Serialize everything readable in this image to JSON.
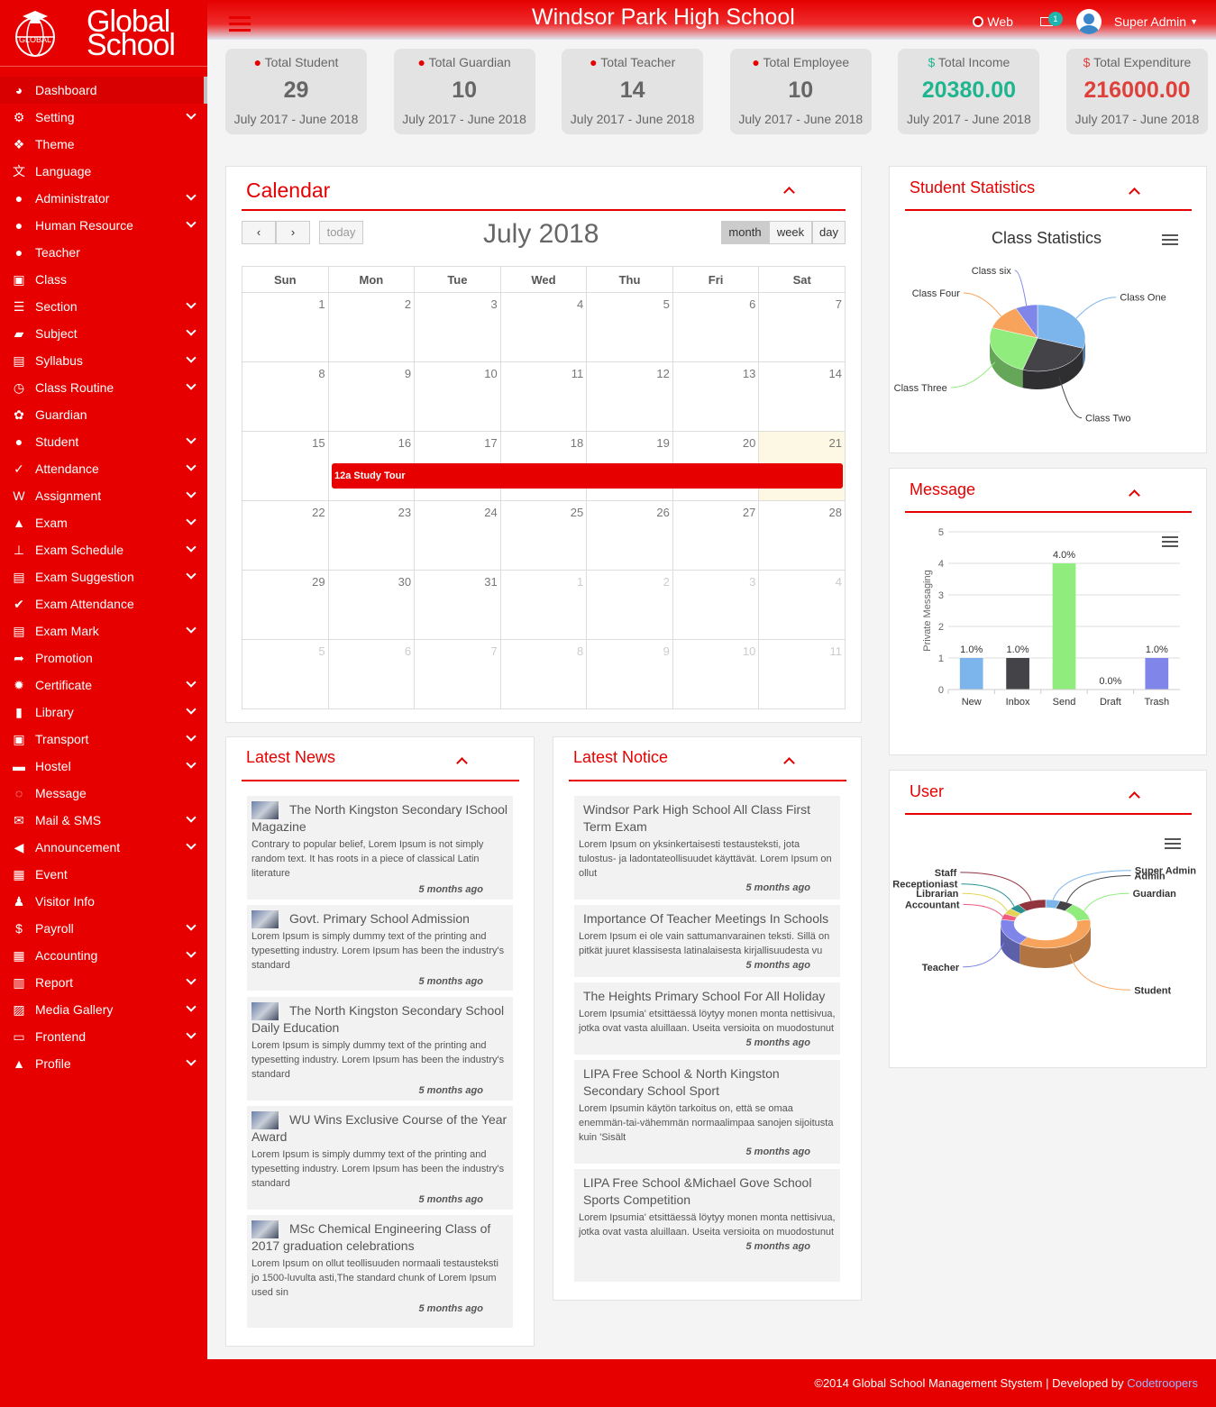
{
  "brand": {
    "line1": "Global",
    "line2": "School",
    "logo_text": "GLOBAL"
  },
  "header": {
    "title": "Windsor Park High School",
    "web_label": "Web",
    "mail_count": "1",
    "user_name": "Super Admin"
  },
  "sidebar": {
    "items": [
      {
        "label": "Dashboard",
        "icon": "dashboard-icon",
        "glyph": "◕",
        "chevron": false
      },
      {
        "label": "Setting",
        "icon": "gears-icon",
        "glyph": "⚙",
        "chevron": true
      },
      {
        "label": "Theme",
        "icon": "cubes-icon",
        "glyph": "❖",
        "chevron": false
      },
      {
        "label": "Language",
        "icon": "language-icon",
        "glyph": "文",
        "chevron": false
      },
      {
        "label": "Administrator",
        "icon": "user-icon",
        "glyph": "●",
        "chevron": true
      },
      {
        "label": "Human Resource",
        "icon": "users-icon",
        "glyph": "●",
        "chevron": true
      },
      {
        "label": "Teacher",
        "icon": "users-icon",
        "glyph": "●",
        "chevron": false
      },
      {
        "label": "Class",
        "icon": "class-icon",
        "glyph": "▣",
        "chevron": false
      },
      {
        "label": "Section",
        "icon": "bars-icon",
        "glyph": "☰",
        "chevron": true
      },
      {
        "label": "Subject",
        "icon": "folder-icon",
        "glyph": "▰",
        "chevron": true
      },
      {
        "label": "Syllabus",
        "icon": "files-icon",
        "glyph": "▤",
        "chevron": true
      },
      {
        "label": "Class Routine",
        "icon": "clock-icon",
        "glyph": "◷",
        "chevron": true
      },
      {
        "label": "Guardian",
        "icon": "paw-icon",
        "glyph": "✿",
        "chevron": false
      },
      {
        "label": "Student",
        "icon": "users-icon",
        "glyph": "●",
        "chevron": true
      },
      {
        "label": "Attendance",
        "icon": "check-circle-icon",
        "glyph": "✓",
        "chevron": true
      },
      {
        "label": "Assignment",
        "icon": "word-file-icon",
        "glyph": "W",
        "chevron": true
      },
      {
        "label": "Exam",
        "icon": "graduation-cap-icon",
        "glyph": "▲",
        "chevron": true
      },
      {
        "label": "Exam Schedule",
        "icon": "thumbtack-icon",
        "glyph": "⊥",
        "chevron": true
      },
      {
        "label": "Exam Suggestion",
        "icon": "file-text-icon",
        "glyph": "▤",
        "chevron": true
      },
      {
        "label": "Exam Attendance",
        "icon": "check-icon",
        "glyph": "✔",
        "chevron": false
      },
      {
        "label": "Exam Mark",
        "icon": "file-text-icon",
        "glyph": "▤",
        "chevron": true
      },
      {
        "label": "Promotion",
        "icon": "share-icon",
        "glyph": "➦",
        "chevron": false
      },
      {
        "label": "Certificate",
        "icon": "certificate-icon",
        "glyph": "✹",
        "chevron": true
      },
      {
        "label": "Library",
        "icon": "book-icon",
        "glyph": "▮",
        "chevron": true
      },
      {
        "label": "Transport",
        "icon": "bus-icon",
        "glyph": "▣",
        "chevron": true
      },
      {
        "label": "Hostel",
        "icon": "bed-icon",
        "glyph": "▬",
        "chevron": true
      },
      {
        "label": "Message",
        "icon": "comments-icon",
        "glyph": "◌",
        "chevron": false
      },
      {
        "label": "Mail & SMS",
        "icon": "envelope-icon",
        "glyph": "✉",
        "chevron": true
      },
      {
        "label": "Announcement",
        "icon": "bullhorn-icon",
        "glyph": "◀",
        "chevron": true
      },
      {
        "label": "Event",
        "icon": "calendar-check-icon",
        "glyph": "▦",
        "chevron": false
      },
      {
        "label": "Visitor Info",
        "icon": "male-icon",
        "glyph": "♟",
        "chevron": false
      },
      {
        "label": "Payroll",
        "icon": "dollar-icon",
        "glyph": "$",
        "chevron": true
      },
      {
        "label": "Accounting",
        "icon": "calculator-icon",
        "glyph": "▦",
        "chevron": true
      },
      {
        "label": "Report",
        "icon": "bar-chart-icon",
        "glyph": "▥",
        "chevron": true
      },
      {
        "label": "Media Gallery",
        "icon": "image-icon",
        "glyph": "▨",
        "chevron": true
      },
      {
        "label": "Frontend",
        "icon": "desktop-icon",
        "glyph": "▭",
        "chevron": true
      },
      {
        "label": "Profile",
        "icon": "lock-icon",
        "glyph": "▲",
        "chevron": true
      }
    ]
  },
  "stats": [
    {
      "label": "Total Student",
      "value": "29",
      "period": "July 2017 - June 2018",
      "icon": "users-icon",
      "color": "#666666"
    },
    {
      "label": "Total Guardian",
      "value": "10",
      "period": "July 2017 - June 2018",
      "icon": "paw-icon",
      "color": "#666666"
    },
    {
      "label": "Total Teacher",
      "value": "14",
      "period": "July 2017 - June 2018",
      "icon": "users-icon",
      "color": "#666666"
    },
    {
      "label": "Total Employee",
      "value": "10",
      "period": "July 2017 - June 2018",
      "icon": "user-secret-icon",
      "color": "#666666"
    },
    {
      "label": "Total Income",
      "value": "20380.00",
      "period": "July 2017 - June 2018",
      "icon": "dollar-icon",
      "color": "#1fb58f"
    },
    {
      "label": "Total Expenditure",
      "value": "216000.00",
      "period": "July 2017 - June 2018",
      "icon": "dollar-icon",
      "color": "#e0403a"
    }
  ],
  "calendar": {
    "title": "Calendar",
    "month_label": "July 2018",
    "today_label": "today",
    "views": [
      "month",
      "week",
      "day"
    ],
    "weekdays": [
      "Sun",
      "Mon",
      "Tue",
      "Wed",
      "Thu",
      "Fri",
      "Sat"
    ],
    "weeks": [
      [
        [
          "1",
          0
        ],
        [
          "2",
          0
        ],
        [
          "3",
          0
        ],
        [
          "4",
          0
        ],
        [
          "5",
          0
        ],
        [
          "6",
          0
        ],
        [
          "7",
          0
        ]
      ],
      [
        [
          "8",
          0
        ],
        [
          "9",
          0
        ],
        [
          "10",
          0
        ],
        [
          "11",
          0
        ],
        [
          "12",
          0
        ],
        [
          "13",
          0
        ],
        [
          "14",
          0
        ]
      ],
      [
        [
          "15",
          0
        ],
        [
          "16",
          0
        ],
        [
          "17",
          0
        ],
        [
          "18",
          0
        ],
        [
          "19",
          0
        ],
        [
          "20",
          0
        ],
        [
          "21",
          2
        ]
      ],
      [
        [
          "22",
          0
        ],
        [
          "23",
          0
        ],
        [
          "24",
          0
        ],
        [
          "25",
          0
        ],
        [
          "26",
          0
        ],
        [
          "27",
          0
        ],
        [
          "28",
          0
        ]
      ],
      [
        [
          "29",
          0
        ],
        [
          "30",
          0
        ],
        [
          "31",
          0
        ],
        [
          "1",
          1
        ],
        [
          "2",
          1
        ],
        [
          "3",
          1
        ],
        [
          "4",
          1
        ]
      ],
      [
        [
          "5",
          1
        ],
        [
          "6",
          1
        ],
        [
          "7",
          1
        ],
        [
          "8",
          1
        ],
        [
          "9",
          1
        ],
        [
          "10",
          1
        ],
        [
          "11",
          1
        ]
      ]
    ],
    "event": "12a Study Tour"
  },
  "student_stats": {
    "panel_title": "Student Statistics",
    "chart_data": {
      "type": "pie",
      "title": "Class Statistics",
      "slices": [
        {
          "label": "Class One",
          "value": 30,
          "color": "#7cb5ec"
        },
        {
          "label": "Class Two",
          "value": 25,
          "color": "#434348"
        },
        {
          "label": "Class Three",
          "value": 25,
          "color": "#90ed7d"
        },
        {
          "label": "Class Four",
          "value": 12.5,
          "color": "#f7a35c"
        },
        {
          "label": "Class six",
          "value": 7.5,
          "color": "#8085e9"
        }
      ]
    }
  },
  "message": {
    "panel_title": "Message",
    "chart_data": {
      "type": "bar",
      "categories": [
        "New",
        "Inbox",
        "Send",
        "Draft",
        "Trash"
      ],
      "values": [
        1,
        1,
        4,
        0,
        1
      ],
      "data_labels": [
        "1.0%",
        "1.0%",
        "4.0%",
        "0.0%",
        "1.0%"
      ],
      "colors": [
        "#7cb5ec",
        "#434348",
        "#90ed7d",
        "#f7a35c",
        "#8085e9"
      ],
      "ylabel": "Private Messaging",
      "ylim": [
        0,
        5
      ],
      "yticks": [
        "0",
        "1",
        "2",
        "3",
        "4",
        "5"
      ]
    }
  },
  "user": {
    "panel_title": "User",
    "chart_data": {
      "type": "pie",
      "donut": true,
      "slices": [
        {
          "label": "Super Admin",
          "value": 4,
          "color": "#7cb5ec"
        },
        {
          "label": "Admin",
          "value": 4,
          "color": "#434348"
        },
        {
          "label": "Guardian",
          "value": 9,
          "color": "#90ed7d"
        },
        {
          "label": "Student",
          "value": 29,
          "color": "#f7a35c"
        },
        {
          "label": "Teacher",
          "value": 14,
          "color": "#8085e9"
        },
        {
          "label": "Accountant",
          "value": 3,
          "color": "#f15c80"
        },
        {
          "label": "Librarian",
          "value": 3,
          "color": "#e4d354"
        },
        {
          "label": "Receptioniast",
          "value": 3,
          "color": "#2b908f"
        },
        {
          "label": "Staff",
          "value": 8,
          "color": "#91343e"
        }
      ]
    }
  },
  "latest_news": {
    "title": "Latest News",
    "items": [
      {
        "title": "The North Kingston Secondary ISchool Magazine",
        "text": "Contrary to popular belief, Lorem Ipsum is not simply random text. It has roots in a piece of classical Latin literature",
        "ago": "5 months ago"
      },
      {
        "title": "Govt. Primary School Admission",
        "text": "Lorem Ipsum is simply dummy text of the printing and typesetting industry. Lorem Ipsum has been the industry's standard",
        "ago": "5 months ago"
      },
      {
        "title": "The North Kingston Secondary School Daily Education",
        "text": "Lorem Ipsum is simply dummy text of the printing and typesetting industry. Lorem Ipsum has been the industry's standard",
        "ago": "5 months ago"
      },
      {
        "title": "WU Wins Exclusive Course of the Year Award",
        "text": "Lorem Ipsum is simply dummy text of the printing and typesetting industry. Lorem Ipsum has been the industry's standard",
        "ago": "5 months ago"
      },
      {
        "title": "MSc Chemical Engineering Class of 2017 graduation celebrations",
        "text": "Lorem Ipsum on ollut teollisuuden normaali testausteksti jo 1500-luvulta asti,The standard chunk of Lorem Ipsum used sin",
        "ago": "5 months ago"
      }
    ]
  },
  "latest_notice": {
    "title": "Latest Notice",
    "items": [
      {
        "title": "Windsor Park High School All Class First Term Exam",
        "text": "Lorem Ipsum on yksinkertaisesti testausteksti, jota tulostus- ja ladontateollisuudet käyttävät. Lorem Ipsum on ollut",
        "ago": "5 months ago"
      },
      {
        "title": "Importance Of Teacher Meetings In Schools",
        "text": "Lorem Ipsum ei ole vain sattumanvarainen teksti. Sillä on pitkät juuret klassisesta latinalaisesta kirjallisuudesta vu",
        "ago": "5 months ago"
      },
      {
        "title": "The Heights Primary School For All Holiday",
        "text": "Lorem Ipsumia' etsittäessä löytyy monen monta nettisivua, jotka ovat vasta aluillaan. Useita versioita on muodostunut",
        "ago": "5 months ago"
      },
      {
        "title": "LIPA Free School & North Kingston Secondary School Sport",
        "text": "Lorem Ipsumin käytön tarkoitus on, että se omaa enemmän-tai-vähemmän normaalimpaa sanojen sijoitusta kuin 'Sisält",
        "ago": "5 months ago"
      },
      {
        "title": "LIPA Free School &Michael Gove School Sports Competition",
        "text": "Lorem Ipsumia' etsittäessä löytyy monen monta nettisivua, jotka ovat vasta aluillaan. Useita versioita on muodostunut",
        "ago": "5 months ago"
      }
    ]
  },
  "footer": {
    "text": "©2014 Global School Management Stystem | Developed by",
    "link": "Codetroopers"
  }
}
